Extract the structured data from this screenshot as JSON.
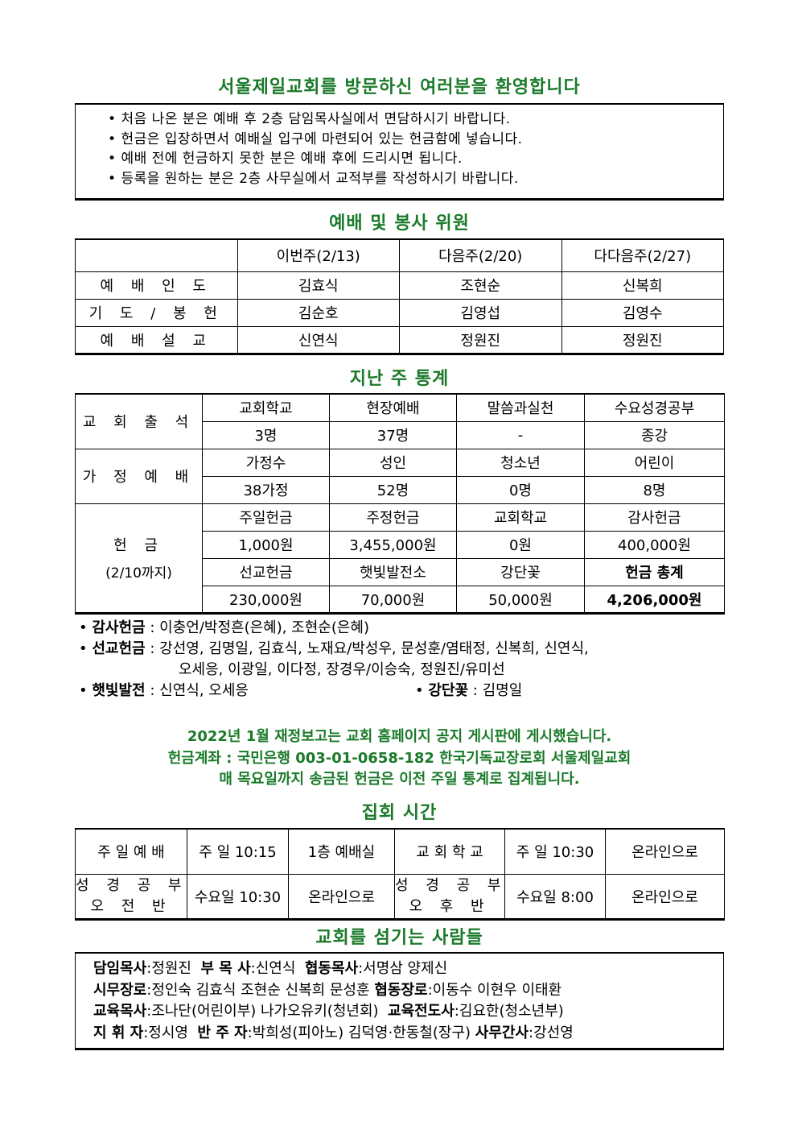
{
  "welcome": {
    "title": "서울제일교회를 방문하신 여러분을 환영합니다",
    "items": [
      "처음 나온 분은 예배 후 2층 담임목사실에서 면담하시기 바랍니다.",
      "헌금은 입장하면서 예배실 입구에 마련되어 있는 헌금함에 넣습니다.",
      "예배 전에 헌금하지 못한 분은 예배 후에 드리시면 됩니다.",
      "등록을 원하는 분은 2층 사무실에서 교적부를 작성하시기 바랍니다."
    ]
  },
  "service": {
    "title": "예배 및 봉사 위원",
    "headers": [
      "",
      "이번주(2/13)",
      "다음주(2/20)",
      "다다음주(2/27)"
    ],
    "rows": [
      [
        "예 배 인 도",
        "김효식",
        "조현순",
        "신복희"
      ],
      [
        "기 도 / 봉 헌",
        "김순호",
        "김영섭",
        "김영수"
      ],
      [
        "예 배 설 교",
        "신연식",
        "정원진",
        "정원진"
      ]
    ]
  },
  "stats": {
    "title": "지난 주 통계",
    "attendance": {
      "label": "교 회 출 석",
      "headers": [
        "교회학교",
        "현장예배",
        "말씀과실천",
        "수요성경공부"
      ],
      "values": [
        "3명",
        "37명",
        "-",
        "종강"
      ]
    },
    "home": {
      "label": "가 정 예 배",
      "headers": [
        "가정수",
        "성인",
        "청소년",
        "어린이"
      ],
      "values": [
        "38가정",
        "52명",
        "0명",
        "8명"
      ]
    },
    "offering": {
      "label": "헌 금",
      "sublabel": "(2/10까지)",
      "headers1": [
        "주일헌금",
        "주정헌금",
        "교회학교",
        "감사헌금"
      ],
      "values1": [
        "1,000원",
        "3,455,000원",
        "0원",
        "400,000원"
      ],
      "headers2": [
        "선교헌금",
        "햇빛발전소",
        "강단꽃",
        "헌금 총계"
      ],
      "values2": [
        "230,000원",
        "70,000원",
        "50,000원",
        "4,206,000원"
      ]
    }
  },
  "notes": {
    "thanks_label": "감사헌금",
    "thanks": "이충언/박정흔(은혜), 조현순(은혜)",
    "mission_label": "선교헌금",
    "mission1": "강선영, 김명일, 김효식, 노재요/박성우, 문성훈/염태정, 신복희, 신연식,",
    "mission2": "오세응, 이광일, 이다정, 장경우/이승숙, 정원진/유미선",
    "solar_label": "햇빛발전",
    "solar": "신연식, 오세응",
    "flower_label": "강단꽃",
    "flower": "김명일",
    "sep": ":"
  },
  "announce": [
    "2022년 1월 재정보고는 교회 홈페이지 공지 게시판에 게시했습니다.",
    "헌금계좌 : 국민은행 003-01-0658-182 한국기독교장로회 서울제일교회",
    "매 목요일까지 송금된 헌금은 이전 주일 통계로 집계됩니다."
  ],
  "meetings": {
    "title": "집회 시간",
    "rows": [
      [
        "주 일 예 배",
        "주 일 10:15",
        "1층 예배실",
        "교 회 학 교",
        "주 일 10:30",
        "온라인으로"
      ],
      [
        "성 경 공 부|오 전 반",
        "수요일 10:30",
        "온라인으로",
        "성 경 공 부|오 후 반",
        "수요일 8:00",
        "온라인으로"
      ]
    ]
  },
  "staff": {
    "title": "교회를 섬기는 사람들",
    "lines": [
      [
        [
          "담임목사",
          ":정원진  "
        ],
        [
          "부 목 사",
          ":신연식  "
        ],
        [
          "협동목사",
          ":서명삼 양제신"
        ]
      ],
      [
        [
          "시무장로",
          ":정인숙 김효식 조현순 신복희 문성훈 "
        ],
        [
          "협동장로",
          ":이동수 이현우 이태환"
        ]
      ],
      [
        [
          "교육목사",
          ":조나단(어린이부) 나가오유키(청년회)  "
        ],
        [
          "교육전도사",
          ":김요한(청소년부)"
        ]
      ],
      [
        [
          "지 휘 자",
          ":정시영  "
        ],
        [
          "반 주 자",
          ":박희성(피아노) 김덕영·한동철(장구) "
        ],
        [
          "사무간사",
          ":강선영"
        ]
      ]
    ]
  },
  "colors": {
    "heading": "#1a7a2a"
  }
}
